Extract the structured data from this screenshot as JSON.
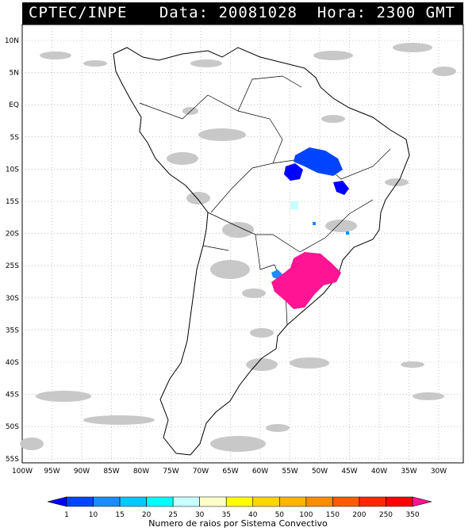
{
  "header": {
    "title": "CPTEC/INPE",
    "info": "Data: 20081028  Hora: 2300 GMT"
  },
  "map": {
    "lat_labels": [
      "10N",
      "5N",
      "EQ",
      "5S",
      "10S",
      "15S",
      "20S",
      "25S",
      "30S",
      "35S",
      "40S",
      "45S",
      "50S",
      "55S"
    ],
    "lon_labels": [
      "100W",
      "95W",
      "90W",
      "85W",
      "80W",
      "75W",
      "70W",
      "65W",
      "60W",
      "55W",
      "50W",
      "45W",
      "40W",
      "35W",
      "30W"
    ]
  },
  "legend": {
    "values": [
      "1",
      "10",
      "15",
      "20",
      "25",
      "30",
      "35",
      "40",
      "50",
      "100",
      "150",
      "200",
      "250",
      "350"
    ],
    "colors": [
      "#0000ff",
      "#0044ff",
      "#1a8cff",
      "#00c8ff",
      "#00ffff",
      "#c8ffff",
      "#ffffcc",
      "#ffff00",
      "#ffd700",
      "#ffb400",
      "#ff8c00",
      "#ff5a00",
      "#ff2800",
      "#ff0000",
      "#ff1493"
    ],
    "caption": "Numero de raios por Sistema Convectivo"
  }
}
